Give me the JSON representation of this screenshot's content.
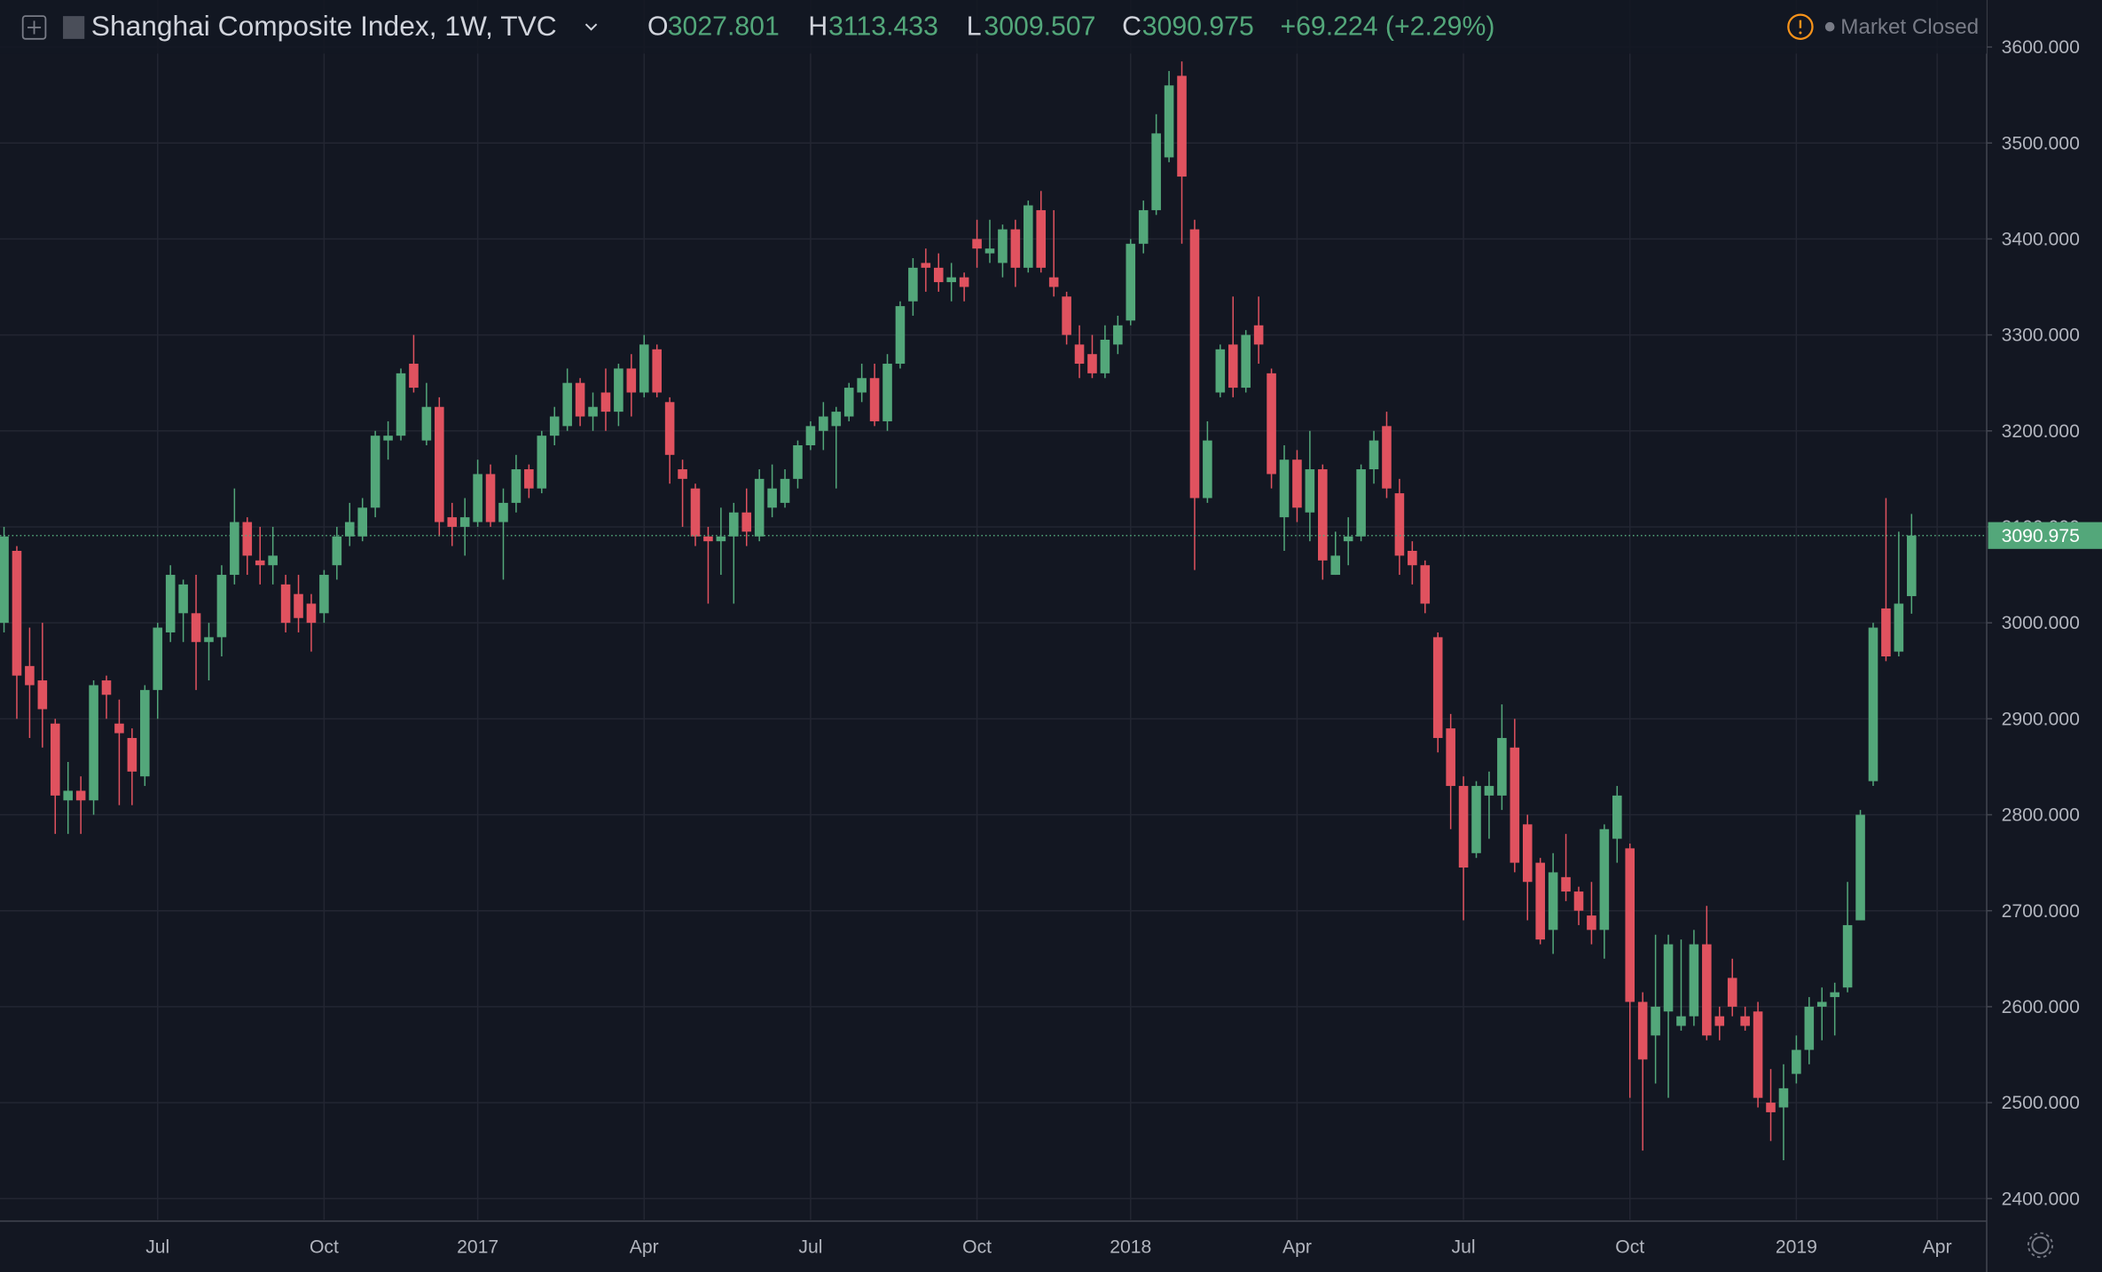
{
  "chart_data": {
    "type": "candlestick",
    "title": "Shanghai Composite Index, 1W, TVC",
    "ohlc_labels": [
      "O",
      "H",
      "L",
      "C"
    ],
    "change_label": "+69.224 (+2.29%)",
    "status": "Market Closed",
    "up_color": "#53a77a",
    "down_color": "#e0525f",
    "grid": true,
    "ylim": [
      2378,
      3649
    ],
    "yticks": [
      {
        "value": 2400,
        "label": "2400.000"
      },
      {
        "value": 2500,
        "label": "2500.000"
      },
      {
        "value": 2600,
        "label": "2600.000"
      },
      {
        "value": 2700,
        "label": "2700.000"
      },
      {
        "value": 2800,
        "label": "2800.000"
      },
      {
        "value": 2900,
        "label": "2900.000"
      },
      {
        "value": 3000,
        "label": "3000.000"
      },
      {
        "value": 3100,
        "label": "3100.000"
      },
      {
        "value": 3200,
        "label": "3200.000"
      },
      {
        "value": 3300,
        "label": "3300.000"
      },
      {
        "value": 3400,
        "label": "3400.000"
      },
      {
        "value": 3500,
        "label": "3500.000"
      },
      {
        "value": 3600,
        "label": "3600.000"
      }
    ],
    "categories": [
      null,
      null,
      null,
      null,
      null,
      null,
      null,
      null,
      null,
      null,
      null,
      null,
      "Jul",
      null,
      null,
      null,
      null,
      null,
      null,
      null,
      null,
      null,
      null,
      null,
      null,
      "Oct",
      null,
      null,
      null,
      null,
      null,
      null,
      null,
      null,
      null,
      null,
      null,
      "2017",
      null,
      null,
      null,
      null,
      null,
      null,
      null,
      null,
      null,
      null,
      null,
      null,
      "Apr",
      null,
      null,
      null,
      null,
      null,
      null,
      null,
      null,
      null,
      null,
      null,
      null,
      "Jul",
      null,
      null,
      null,
      null,
      null,
      null,
      null,
      null,
      null,
      null,
      null,
      null,
      "Oct",
      null,
      null,
      null,
      null,
      null,
      null,
      null,
      null,
      null,
      null,
      null,
      "2018",
      null,
      null,
      null,
      null,
      null,
      null,
      null,
      null,
      null,
      null,
      null,
      null,
      "Apr",
      null,
      null,
      null,
      null,
      null,
      null,
      null,
      null,
      null,
      null,
      null,
      null,
      "Jul",
      null,
      null,
      null,
      null,
      null,
      null,
      null,
      null,
      null,
      null,
      null,
      null,
      "Oct",
      null,
      null,
      null,
      null,
      null,
      null,
      null,
      null,
      null,
      null,
      null,
      null,
      "2019",
      null,
      null,
      null,
      null,
      null,
      null,
      null,
      null,
      null,
      null,
      "Apr"
    ],
    "open": [
      3000,
      3075,
      2955,
      2940,
      2895,
      2815,
      2825,
      2815,
      2940,
      2895,
      2880,
      2840,
      2930,
      2990,
      3010,
      3010,
      2980,
      2985,
      3050,
      3105,
      3065,
      3060,
      3040,
      3030,
      3020,
      3010,
      3060,
      3090,
      3090,
      3120,
      3190,
      3195,
      3270,
      3190,
      3225,
      3110,
      3100,
      3105,
      3155,
      3105,
      3125,
      3160,
      3140,
      3195,
      3205,
      3250,
      3215,
      3240,
      3220,
      3265,
      3240,
      3285,
      3230,
      3160,
      3140,
      3090,
      3085,
      3090,
      3115,
      3090,
      3120,
      3125,
      3150,
      3185,
      3200,
      3205,
      3215,
      3240,
      3255,
      3210,
      3270,
      3335,
      3375,
      3370,
      3355,
      3360,
      3400,
      3385,
      3375,
      3410,
      3370,
      3430,
      3360,
      3340,
      3290,
      3280,
      3260,
      3290,
      3315,
      3395,
      3430,
      3485,
      3570,
      3410,
      3130,
      3240,
      3290,
      3245,
      3310,
      3260,
      3110,
      3170,
      3115,
      3160,
      3050,
      3085,
      3090,
      3160,
      3205,
      3135,
      3075,
      3060,
      2985,
      2890,
      2830,
      2760,
      2820,
      2820,
      2870,
      2790,
      2750,
      2680,
      2735,
      2720,
      2695,
      2680,
      2775,
      2765,
      2605,
      2570,
      2595,
      2580,
      2590,
      2665,
      2590,
      2630,
      2590,
      2595,
      2500,
      2495,
      2530,
      2555,
      2600,
      2610,
      2620,
      2690,
      2835,
      3015,
      2970,
      3027.801,
      null,
      null
    ],
    "high": [
      3100,
      3080,
      2995,
      3000,
      2900,
      2855,
      2840,
      2940,
      2945,
      2920,
      2890,
      2935,
      3000,
      3060,
      3045,
      3050,
      3000,
      3060,
      3140,
      3110,
      3100,
      3100,
      3050,
      3050,
      3030,
      3055,
      3100,
      3125,
      3130,
      3200,
      3210,
      3265,
      3300,
      3250,
      3235,
      3125,
      3130,
      3170,
      3165,
      3140,
      3175,
      3165,
      3200,
      3225,
      3265,
      3255,
      3240,
      3265,
      3270,
      3280,
      3300,
      3290,
      3235,
      3170,
      3145,
      3100,
      3120,
      3125,
      3140,
      3160,
      3165,
      3160,
      3190,
      3210,
      3230,
      3225,
      3250,
      3270,
      3270,
      3280,
      3335,
      3380,
      3390,
      3385,
      3375,
      3365,
      3420,
      3420,
      3415,
      3420,
      3440,
      3450,
      3430,
      3345,
      3310,
      3300,
      3310,
      3320,
      3400,
      3440,
      3530,
      3575,
      3585,
      3420,
      3210,
      3290,
      3340,
      3305,
      3340,
      3265,
      3185,
      3180,
      3200,
      3165,
      3095,
      3110,
      3165,
      3200,
      3220,
      3150,
      3085,
      3065,
      2990,
      2905,
      2840,
      2835,
      2845,
      2915,
      2900,
      2800,
      2755,
      2760,
      2780,
      2725,
      2730,
      2790,
      2830,
      2770,
      2615,
      2675,
      2675,
      2670,
      2680,
      2705,
      2600,
      2650,
      2600,
      2605,
      2535,
      2540,
      2570,
      2610,
      2620,
      2625,
      2730,
      2805,
      3000,
      3130,
      3095,
      3113.433,
      null,
      null
    ],
    "low": [
      2990,
      2900,
      2880,
      2870,
      2780,
      2780,
      2780,
      2800,
      2900,
      2810,
      2810,
      2830,
      2900,
      2980,
      2980,
      2930,
      2940,
      2965,
      3040,
      3050,
      3040,
      3040,
      2990,
      2990,
      2970,
      3000,
      3045,
      3080,
      3085,
      3110,
      3170,
      3190,
      3240,
      3185,
      3090,
      3080,
      3070,
      3100,
      3100,
      3045,
      3115,
      3130,
      3135,
      3185,
      3200,
      3205,
      3200,
      3200,
      3205,
      3215,
      3235,
      3235,
      3145,
      3100,
      3080,
      3020,
      3050,
      3020,
      3080,
      3085,
      3110,
      3120,
      3140,
      3180,
      3180,
      3140,
      3210,
      3230,
      3205,
      3200,
      3265,
      3320,
      3345,
      3345,
      3335,
      3335,
      3370,
      3375,
      3360,
      3350,
      3365,
      3365,
      3340,
      3290,
      3255,
      3255,
      3255,
      3280,
      3310,
      3385,
      3425,
      3480,
      3395,
      3055,
      3125,
      3235,
      3235,
      3240,
      3270,
      3140,
      3075,
      3105,
      3085,
      3045,
      3050,
      3060,
      3085,
      3145,
      3130,
      3050,
      3040,
      3010,
      2865,
      2785,
      2690,
      2755,
      2775,
      2805,
      2740,
      2690,
      2665,
      2655,
      2710,
      2685,
      2665,
      2650,
      2750,
      2505,
      2450,
      2520,
      2505,
      2575,
      2580,
      2565,
      2565,
      2590,
      2575,
      2495,
      2460,
      2440,
      2520,
      2540,
      2565,
      2570,
      2615,
      2690,
      2830,
      2960,
      2965,
      3009.507,
      null,
      null
    ],
    "close": [
      3090,
      2945,
      2935,
      2910,
      2820,
      2825,
      2815,
      2935,
      2925,
      2885,
      2845,
      2930,
      2995,
      3050,
      3040,
      2980,
      2985,
      3050,
      3105,
      3070,
      3060,
      3070,
      3000,
      3005,
      3000,
      3050,
      3090,
      3105,
      3120,
      3195,
      3195,
      3260,
      3245,
      3225,
      3105,
      3100,
      3110,
      3155,
      3105,
      3125,
      3160,
      3140,
      3195,
      3215,
      3250,
      3215,
      3225,
      3220,
      3265,
      3240,
      3290,
      3240,
      3175,
      3150,
      3090,
      3085,
      3090,
      3115,
      3095,
      3150,
      3140,
      3150,
      3185,
      3205,
      3215,
      3220,
      3245,
      3255,
      3210,
      3270,
      3330,
      3370,
      3370,
      3355,
      3360,
      3350,
      3390,
      3390,
      3410,
      3370,
      3435,
      3370,
      3350,
      3300,
      3270,
      3260,
      3295,
      3310,
      3395,
      3430,
      3510,
      3560,
      3465,
      3130,
      3190,
      3285,
      3245,
      3300,
      3290,
      3155,
      3170,
      3120,
      3160,
      3065,
      3070,
      3090,
      3160,
      3190,
      3140,
      3070,
      3060,
      3020,
      2880,
      2830,
      2745,
      2830,
      2830,
      2880,
      2750,
      2730,
      2670,
      2740,
      2720,
      2700,
      2680,
      2785,
      2820,
      2605,
      2545,
      2600,
      2665,
      2590,
      2665,
      2570,
      2580,
      2600,
      2580,
      2505,
      2490,
      2515,
      2555,
      2600,
      2605,
      2615,
      2685,
      2800,
      2995,
      2965,
      3020,
      3090.975,
      null,
      null
    ]
  }
}
